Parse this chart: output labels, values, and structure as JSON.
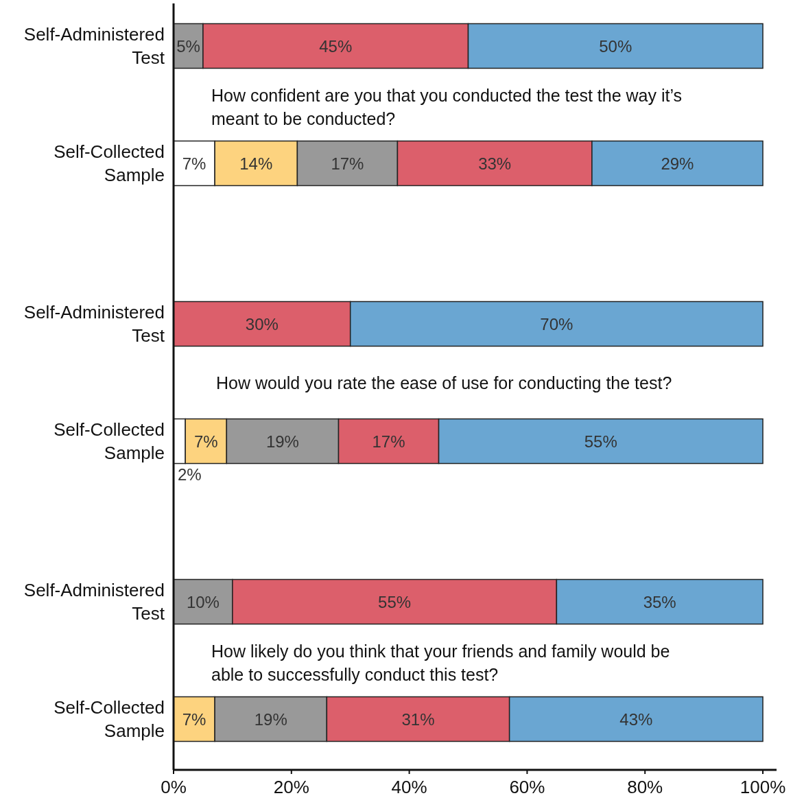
{
  "chart_data": {
    "type": "bar",
    "orientation": "horizontal",
    "stacked": true,
    "categories": [
      "Self-Administered Test",
      "Self-Collected Sample",
      "Self-Administered Test",
      "Self-Collected Sample",
      "Self-Administered Test",
      "Self-Collected Sample"
    ],
    "series": [
      {
        "color": "#ffffff",
        "values": [
          null,
          7,
          null,
          2,
          null,
          null
        ],
        "value_labels": [
          null,
          "7%",
          null,
          "2%",
          null,
          null
        ]
      },
      {
        "color": "#fdd37f",
        "values": [
          null,
          14,
          null,
          7,
          null,
          7
        ],
        "value_labels": [
          null,
          "14%",
          null,
          "7%",
          null,
          "7%"
        ]
      },
      {
        "color": "#999999",
        "values": [
          5,
          17,
          null,
          19,
          10,
          19
        ],
        "value_labels": [
          "5%",
          "17%",
          null,
          "19%",
          "10%",
          "19%"
        ]
      },
      {
        "color": "#dc5f6b",
        "values": [
          45,
          33,
          30,
          17,
          55,
          31
        ],
        "value_labels": [
          "45%",
          "33%",
          "30%",
          "17%",
          "55%",
          "31%"
        ]
      },
      {
        "color": "#6aa6d2",
        "values": [
          50,
          29,
          70,
          55,
          35,
          43
        ],
        "value_labels": [
          "50%",
          "29%",
          "70%",
          "55%",
          "35%",
          "43%"
        ]
      }
    ],
    "xlim": [
      0,
      100
    ],
    "xticks": [
      {
        "value": 0,
        "label": "0%"
      },
      {
        "value": 20,
        "label": "20%"
      },
      {
        "value": 40,
        "label": "40%"
      },
      {
        "value": 60,
        "label": "60%"
      },
      {
        "value": 80,
        "label": "80%"
      },
      {
        "value": 100,
        "label": "100%"
      }
    ],
    "annotations": [
      "How confident are you that you conducted the test the way it’s meant to be conducted?",
      "How would you rate the ease of use for conducting the test?",
      "How likely do you think that your friends and family would be able to successfully conduct this test?"
    ]
  }
}
